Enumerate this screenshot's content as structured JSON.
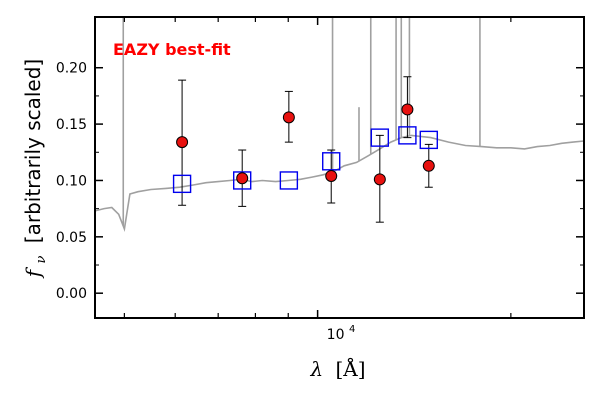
{
  "chart_data": {
    "type": "scatter",
    "annotation": "EAZY best-fit",
    "annotation_color": "#ff0000",
    "xlabel_symbol": "λ",
    "xlabel_unit": "[Å]",
    "ylabel_symbol": "f",
    "ylabel_sub": "ν",
    "ylabel_text": "[arbitrarily scaled]",
    "x_scale": "log",
    "xlim": [
      4500,
      26000
    ],
    "ylim": [
      -0.022,
      0.245
    ],
    "yticks": [
      {
        "value": 0.0,
        "label": "0.00"
      },
      {
        "value": 0.05,
        "label": "0.05"
      },
      {
        "value": 0.1,
        "label": "0.10"
      },
      {
        "value": 0.15,
        "label": "0.15"
      },
      {
        "value": 0.2,
        "label": "0.20"
      }
    ],
    "xtick_major": {
      "value": 10000,
      "base": "10",
      "exp": "4"
    },
    "xtick_minor": [
      5000,
      6000,
      7000,
      8000,
      9000,
      20000
    ],
    "grid": false,
    "colors": {
      "observed_fill": "#e8110f",
      "model_square": "#0000ee",
      "template_line": "#a0a0a0",
      "error_bar": "#000000"
    },
    "observed_photometry": [
      {
        "x": 6150,
        "y": 0.134,
        "yerr_low": 0.056,
        "yerr_high": 0.055
      },
      {
        "x": 7630,
        "y": 0.102,
        "yerr_low": 0.025,
        "yerr_high": 0.025
      },
      {
        "x": 9020,
        "y": 0.156,
        "yerr_low": 0.022,
        "yerr_high": 0.023
      },
      {
        "x": 10500,
        "y": 0.104,
        "yerr_low": 0.024,
        "yerr_high": 0.023
      },
      {
        "x": 12500,
        "y": 0.101,
        "yerr_low": 0.038,
        "yerr_high": 0.039
      },
      {
        "x": 13800,
        "y": 0.163,
        "yerr_low": 0.025,
        "yerr_high": 0.029
      },
      {
        "x": 14900,
        "y": 0.113,
        "yerr_low": 0.019,
        "yerr_high": 0.019
      }
    ],
    "model_photometry": [
      {
        "x": 6150,
        "y": 0.097
      },
      {
        "x": 7630,
        "y": 0.1
      },
      {
        "x": 9020,
        "y": 0.1
      },
      {
        "x": 10500,
        "y": 0.117
      },
      {
        "x": 12500,
        "y": 0.138
      },
      {
        "x": 13800,
        "y": 0.14
      },
      {
        "x": 14900,
        "y": 0.136
      }
    ],
    "template_spectrum": [
      [
        4500,
        0.073
      ],
      [
        4650,
        0.075
      ],
      [
        4780,
        0.076
      ],
      [
        4900,
        0.07
      ],
      [
        5000,
        0.057
      ],
      [
        5100,
        0.088
      ],
      [
        5250,
        0.09
      ],
      [
        5500,
        0.092
      ],
      [
        5800,
        0.093
      ],
      [
        6100,
        0.094
      ],
      [
        6400,
        0.096
      ],
      [
        6700,
        0.098
      ],
      [
        7000,
        0.099
      ],
      [
        7300,
        0.1
      ],
      [
        7600,
        0.101
      ],
      [
        7900,
        0.099
      ],
      [
        8200,
        0.1
      ],
      [
        8600,
        0.099
      ],
      [
        9000,
        0.1
      ],
      [
        9400,
        0.101
      ],
      [
        9800,
        0.103
      ],
      [
        10200,
        0.105
      ],
      [
        10600,
        0.108
      ],
      [
        11000,
        0.113
      ],
      [
        11500,
        0.116
      ],
      [
        12000,
        0.122
      ],
      [
        12500,
        0.128
      ],
      [
        13000,
        0.134
      ],
      [
        13500,
        0.138
      ],
      [
        14000,
        0.14
      ],
      [
        15000,
        0.138
      ],
      [
        16000,
        0.134
      ],
      [
        17000,
        0.131
      ],
      [
        18000,
        0.13
      ],
      [
        19000,
        0.129
      ],
      [
        20000,
        0.129
      ],
      [
        21000,
        0.128
      ],
      [
        22000,
        0.13
      ],
      [
        23000,
        0.131
      ],
      [
        24000,
        0.133
      ],
      [
        25000,
        0.134
      ],
      [
        26000,
        0.135
      ]
    ],
    "emission_lines": [
      {
        "x": 4980,
        "y": 0.245
      },
      {
        "x": 10550,
        "y": 0.245
      },
      {
        "x": 11600,
        "y": 0.165
      },
      {
        "x": 12100,
        "y": 0.245
      },
      {
        "x": 13250,
        "y": 0.245
      },
      {
        "x": 13500,
        "y": 0.245
      },
      {
        "x": 13900,
        "y": 0.245
      },
      {
        "x": 17900,
        "y": 0.245
      }
    ]
  }
}
